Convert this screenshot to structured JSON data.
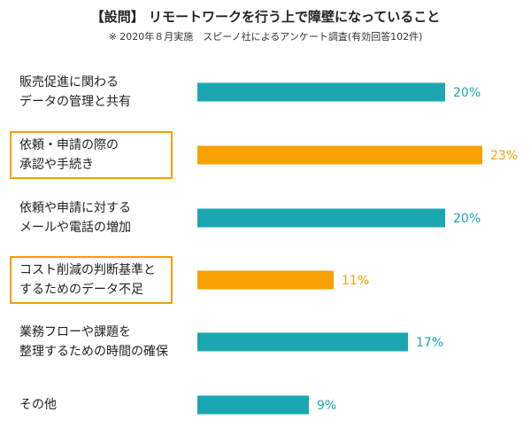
{
  "header": {
    "title": "【設問】 リモートワークを行う上で障壁になっていること",
    "subtitle": "※ 2020年８月実施　スピーノ社によるアンケート調査(有効回答102件)"
  },
  "chart_data": {
    "type": "bar",
    "orientation": "horizontal",
    "categories": [
      [
        "販売促進に関わる",
        "データの管理と共有"
      ],
      [
        "依頼・申請の際の",
        "承認や手続き"
      ],
      [
        "依頼や申請に対する",
        "メールや電話の増加"
      ],
      [
        "コスト削減の判断基準と",
        "するためのデータ不足"
      ],
      [
        "業務フローや課題を",
        "整理するための時間の確保"
      ],
      [
        "その他"
      ]
    ],
    "values": [
      20,
      23,
      20,
      11,
      17,
      9
    ],
    "value_labels": [
      "20%",
      "23%",
      "20%",
      "11%",
      "17%",
      "9%"
    ],
    "highlighted": [
      false,
      true,
      false,
      true,
      false,
      false
    ],
    "colors": {
      "normal": "#1aa7b0",
      "highlight": "#f7a000"
    },
    "grid": false,
    "legend": "none"
  }
}
